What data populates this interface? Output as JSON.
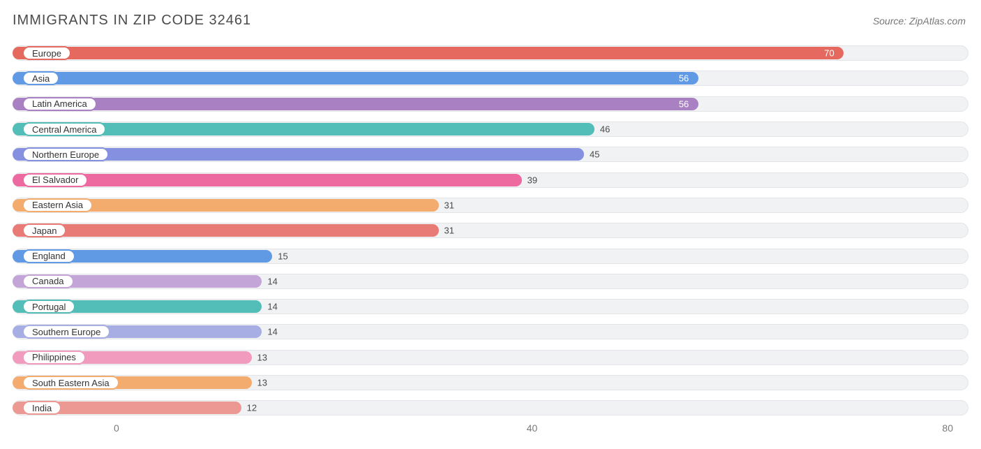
{
  "title": "IMMIGRANTS IN ZIP CODE 32461",
  "source": "Source: ZipAtlas.com",
  "chart": {
    "type": "bar",
    "xmin": -10,
    "xmax": 82,
    "xticks": [
      0,
      40,
      80
    ],
    "track_bg": "#f1f2f3",
    "track_border": "#e2e4e8",
    "title_fontsize": 20,
    "title_color": "#4b4b4b",
    "source_fontsize": 14,
    "source_color": "#777777",
    "label_fontsize": 13,
    "value_fontsize": 13,
    "rows": [
      {
        "label": "Europe",
        "value": 70,
        "color": "#e5695f",
        "value_inside": true
      },
      {
        "label": "Asia",
        "value": 56,
        "color": "#6099e4",
        "value_inside": true
      },
      {
        "label": "Latin America",
        "value": 56,
        "color": "#a981c2",
        "value_inside": true
      },
      {
        "label": "Central America",
        "value": 46,
        "color": "#53bdb7",
        "value_inside": false
      },
      {
        "label": "Northern Europe",
        "value": 45,
        "color": "#8591e0",
        "value_inside": false
      },
      {
        "label": "El Salvador",
        "value": 39,
        "color": "#ec6aa0",
        "value_inside": false
      },
      {
        "label": "Eastern Asia",
        "value": 31,
        "color": "#f4ac6e",
        "value_inside": false
      },
      {
        "label": "Japan",
        "value": 31,
        "color": "#e97b76",
        "value_inside": false
      },
      {
        "label": "England",
        "value": 15,
        "color": "#6099e4",
        "value_inside": false
      },
      {
        "label": "Canada",
        "value": 14,
        "color": "#c3a5d8",
        "value_inside": false
      },
      {
        "label": "Portugal",
        "value": 14,
        "color": "#53bdb7",
        "value_inside": false
      },
      {
        "label": "Southern Europe",
        "value": 14,
        "color": "#a7aee4",
        "value_inside": false
      },
      {
        "label": "Philippines",
        "value": 13,
        "color": "#f19bbf",
        "value_inside": false
      },
      {
        "label": "South Eastern Asia",
        "value": 13,
        "color": "#f4ac6e",
        "value_inside": false
      },
      {
        "label": "India",
        "value": 12,
        "color": "#ec9994",
        "value_inside": false
      }
    ]
  }
}
